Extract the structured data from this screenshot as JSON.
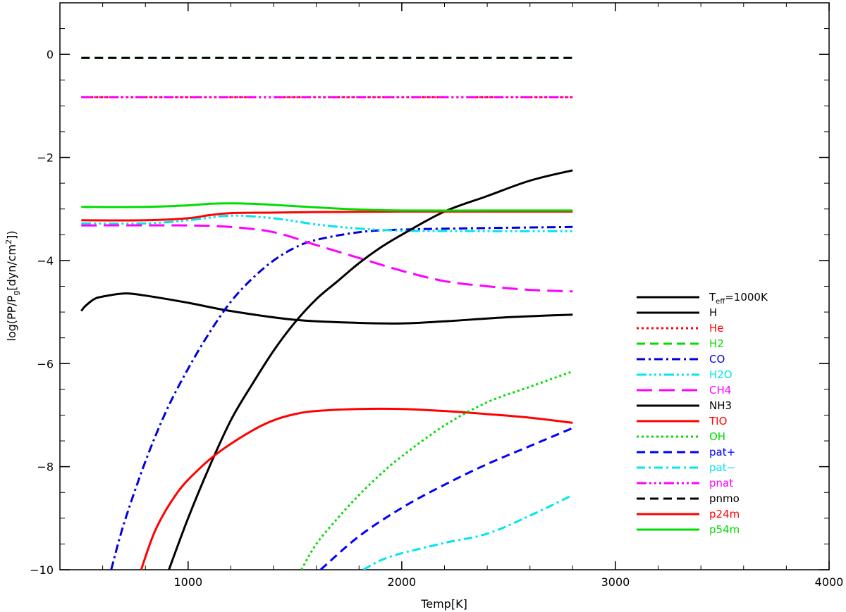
{
  "chart_data": {
    "type": "line",
    "title": "",
    "xlabel": "Temp[K]",
    "ylabel": "log(PP/P",
    "ylabel_sub": "g",
    "ylabel_tail": "[dyn/cm",
    "ylabel_sup": "2",
    "ylabel_end": "])",
    "xlim": [
      400,
      4000
    ],
    "ylim": [
      -10,
      1
    ],
    "xticks": [
      1000,
      2000,
      3000,
      4000
    ],
    "yticks": [
      0,
      -2,
      -4,
      -6,
      -8,
      -10
    ],
    "grid": false,
    "legend_position": "right",
    "legend_header": {
      "prefix": "T",
      "sub": "eff",
      "suffix": "=1000K"
    },
    "series": [
      {
        "name": "H",
        "color": "#000000",
        "dash": "solid",
        "width": 3,
        "x": [
          500,
          520,
          560,
          600,
          700,
          800,
          1000,
          1200,
          1500,
          1800,
          2000,
          2200,
          2500,
          2800
        ],
        "y": [
          -4.98,
          -4.88,
          -4.75,
          -4.7,
          -4.64,
          -4.68,
          -4.82,
          -4.98,
          -5.15,
          -5.21,
          -5.22,
          -5.18,
          -5.1,
          -5.05
        ]
      },
      {
        "name": "He",
        "color": "#ff0000",
        "dash": "dotted",
        "width": 3,
        "x": [
          500,
          1000,
          1500,
          2000,
          2500,
          2800
        ],
        "y": [
          -0.83,
          -0.83,
          -0.83,
          -0.83,
          -0.83,
          -0.83
        ]
      },
      {
        "name": "H2",
        "color": "#00dd00",
        "dash": "dashed",
        "width": 3,
        "x": [
          500,
          1000,
          1500,
          2000,
          2500,
          2800
        ],
        "y": [
          -0.07,
          -0.07,
          -0.07,
          -0.07,
          -0.07,
          -0.07
        ]
      },
      {
        "name": "CO",
        "color": "#0000dd",
        "dash": "dashdot",
        "width": 3,
        "x": [
          640,
          700,
          800,
          900,
          1000,
          1100,
          1200,
          1300,
          1400,
          1500,
          1600,
          1800,
          2000,
          2400,
          2800
        ],
        "y": [
          -10.0,
          -9.1,
          -7.9,
          -6.9,
          -6.1,
          -5.4,
          -4.8,
          -4.35,
          -4.0,
          -3.75,
          -3.6,
          -3.45,
          -3.4,
          -3.37,
          -3.35
        ]
      },
      {
        "name": "H2O",
        "color": "#00e5ee",
        "dash": "dashdotdotdot",
        "width": 3,
        "x": [
          500,
          800,
          1000,
          1200,
          1400,
          1600,
          1800,
          2000,
          2400,
          2800
        ],
        "y": [
          -3.28,
          -3.28,
          -3.22,
          -3.13,
          -3.18,
          -3.3,
          -3.38,
          -3.42,
          -3.43,
          -3.43
        ]
      },
      {
        "name": "CH4",
        "color": "#ff00ff",
        "dash": "longdash",
        "width": 3,
        "x": [
          500,
          1000,
          1200,
          1400,
          1600,
          1800,
          2000,
          2200,
          2400,
          2600,
          2800
        ],
        "y": [
          -3.32,
          -3.32,
          -3.35,
          -3.45,
          -3.7,
          -3.95,
          -4.2,
          -4.4,
          -4.5,
          -4.57,
          -4.6
        ]
      },
      {
        "name": "NH3",
        "color": "#000000",
        "dash": "solid",
        "width": 3,
        "x": [
          910,
          1000,
          1100,
          1200,
          1300,
          1400,
          1500,
          1600,
          1700,
          1800,
          1900,
          2000,
          2200,
          2400,
          2600,
          2800
        ],
        "y": [
          -10.0,
          -9.0,
          -8.0,
          -7.1,
          -6.4,
          -5.75,
          -5.2,
          -4.75,
          -4.4,
          -4.05,
          -3.75,
          -3.5,
          -3.05,
          -2.75,
          -2.45,
          -2.25
        ]
      },
      {
        "name": "TIO",
        "color": "#ff0000",
        "dash": "solid",
        "width": 3,
        "x": [
          780,
          850,
          950,
          1050,
          1150,
          1300,
          1400,
          1500,
          1600,
          1800,
          2000,
          2200,
          2400,
          2600,
          2800
        ],
        "y": [
          -10.0,
          -9.2,
          -8.5,
          -8.05,
          -7.7,
          -7.3,
          -7.1,
          -6.98,
          -6.92,
          -6.88,
          -6.88,
          -6.92,
          -6.98,
          -7.05,
          -7.15
        ]
      },
      {
        "name": "OH",
        "color": "#00dd00",
        "dash": "dotted",
        "width": 3,
        "x": [
          1530,
          1600,
          1700,
          1800,
          1900,
          2000,
          2200,
          2400,
          2600,
          2800
        ],
        "y": [
          -10.0,
          -9.5,
          -9.0,
          -8.55,
          -8.15,
          -7.8,
          -7.2,
          -6.75,
          -6.45,
          -6.15
        ]
      },
      {
        "name": "pat+",
        "color": "#0000ff",
        "dash": "dashed",
        "width": 3,
        "x": [
          1620,
          1800,
          2000,
          2200,
          2400,
          2600,
          2800
        ],
        "y": [
          -10.0,
          -9.35,
          -8.8,
          -8.35,
          -7.95,
          -7.6,
          -7.25
        ]
      },
      {
        "name": "pat−",
        "color": "#00e5ee",
        "dash": "dashdot",
        "width": 3,
        "x": [
          1820,
          1900,
          2000,
          2200,
          2400,
          2600,
          2800
        ],
        "y": [
          -10.0,
          -9.82,
          -9.68,
          -9.48,
          -9.3,
          -8.95,
          -8.55
        ]
      },
      {
        "name": "pnat",
        "color": "#ff00ff",
        "dash": "dashdotdotdot",
        "width": 3,
        "x": [
          500,
          1000,
          1500,
          2000,
          2500,
          2800
        ],
        "y": [
          -0.83,
          -0.83,
          -0.83,
          -0.83,
          -0.83,
          -0.83
        ]
      },
      {
        "name": "pnmo",
        "color": "#000000",
        "dash": "dashed",
        "width": 3,
        "x": [
          500,
          1000,
          1500,
          2000,
          2500,
          2800
        ],
        "y": [
          -0.07,
          -0.07,
          -0.07,
          -0.07,
          -0.07,
          -0.07
        ]
      },
      {
        "name": "p24m",
        "color": "#ff0000",
        "dash": "solid",
        "width": 3,
        "x": [
          500,
          800,
          1000,
          1100,
          1200,
          1400,
          1600,
          2000,
          2400,
          2800
        ],
        "y": [
          -3.22,
          -3.22,
          -3.18,
          -3.12,
          -3.08,
          -3.07,
          -3.06,
          -3.05,
          -3.05,
          -3.05
        ]
      },
      {
        "name": "p54m",
        "color": "#00dd00",
        "dash": "solid",
        "width": 3,
        "x": [
          500,
          800,
          1000,
          1100,
          1200,
          1300,
          1400,
          1600,
          1800,
          2000,
          2400,
          2800
        ],
        "y": [
          -2.96,
          -2.96,
          -2.93,
          -2.9,
          -2.89,
          -2.9,
          -2.92,
          -2.97,
          -3.01,
          -3.03,
          -3.03,
          -3.03
        ]
      }
    ]
  }
}
